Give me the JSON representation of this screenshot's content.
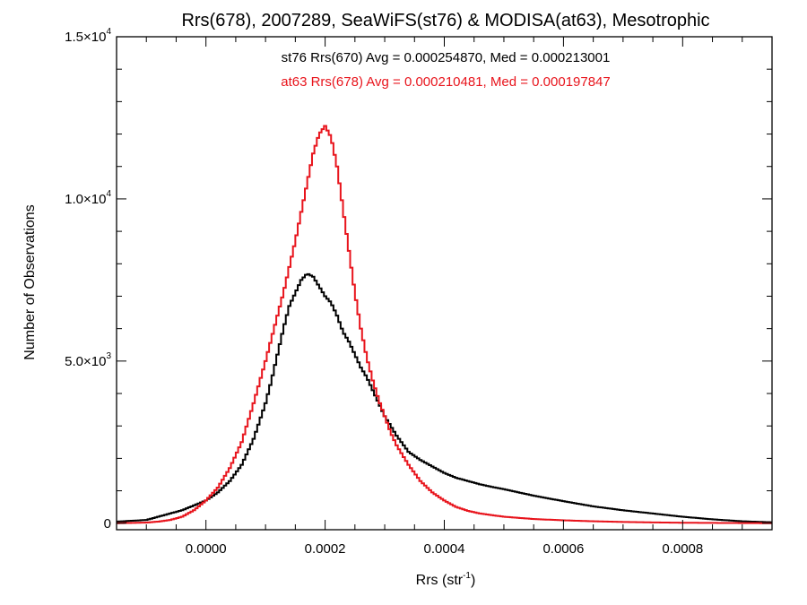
{
  "chart_data": {
    "type": "line",
    "title": "Rrs(678), 2007289, SeaWiFS(st76) & MODISA(at63), Mesotrophic",
    "xlabel_base": "Rrs (str",
    "xlabel_sup": "-1",
    "xlabel_end": ")",
    "ylabel": "Number of Observations",
    "xlim": [
      -0.00015,
      0.00095
    ],
    "ylim": [
      -200,
      15000
    ],
    "x_ticks": [
      {
        "value": 0.0,
        "label": "0.0000"
      },
      {
        "value": 0.0002,
        "label": "0.0002"
      },
      {
        "value": 0.0004,
        "label": "0.0004"
      },
      {
        "value": 0.0006,
        "label": "0.0006"
      },
      {
        "value": 0.0008,
        "label": "0.0008"
      }
    ],
    "y_ticks": [
      {
        "value": 0,
        "base": "0",
        "exp": ""
      },
      {
        "value": 5000,
        "base": "5.0×10",
        "exp": "3"
      },
      {
        "value": 10000,
        "base": "1.0×10",
        "exp": "4"
      },
      {
        "value": 15000,
        "base": "1.5×10",
        "exp": "4"
      }
    ],
    "series": [
      {
        "name": "st76",
        "legend": "st76 Rrs(670) Avg = 0.000254870, Med = 0.000213001",
        "color": "#000000",
        "x": [
          -0.00015,
          -0.0001,
          -8e-05,
          -6e-05,
          -4e-05,
          -2e-05,
          0.0,
          2e-05,
          4e-05,
          6e-05,
          8e-05,
          0.0001,
          0.00011,
          0.00012,
          0.00013,
          0.00014,
          0.00015,
          0.00016,
          0.00017,
          0.00018,
          0.00019,
          0.0002,
          0.00021,
          0.00022,
          0.00023,
          0.00024,
          0.00025,
          0.00026,
          0.00027,
          0.00028,
          0.0003,
          0.00032,
          0.00034,
          0.00036,
          0.00038,
          0.0004,
          0.00042,
          0.00044,
          0.00046,
          0.00048,
          0.0005,
          0.00055,
          0.0006,
          0.00065,
          0.0007,
          0.00075,
          0.0008,
          0.00085,
          0.0009,
          0.00095
        ],
        "values": [
          50,
          100,
          200,
          300,
          400,
          550,
          700,
          950,
          1300,
          1800,
          2600,
          3700,
          4400,
          5200,
          6000,
          6700,
          7100,
          7500,
          7700,
          7600,
          7300,
          7000,
          6800,
          6400,
          5900,
          5600,
          5200,
          4800,
          4500,
          4100,
          3300,
          2700,
          2200,
          1950,
          1750,
          1550,
          1400,
          1300,
          1200,
          1120,
          1050,
          850,
          680,
          520,
          400,
          300,
          200,
          120,
          60,
          30
        ]
      },
      {
        "name": "at63",
        "legend": "at63 Rrs(678) Avg = 0.000210481, Med = 0.000197847",
        "color": "#e8141c",
        "x": [
          -0.00015,
          -0.0001,
          -8e-05,
          -6e-05,
          -4e-05,
          -2e-05,
          0.0,
          2e-05,
          4e-05,
          6e-05,
          8e-05,
          0.0001,
          0.00011,
          0.00012,
          0.00013,
          0.00014,
          0.00015,
          0.00016,
          0.00017,
          0.00018,
          0.00019,
          0.0002,
          0.00021,
          0.00022,
          0.00023,
          0.00024,
          0.00025,
          0.00026,
          0.00027,
          0.00028,
          0.00029,
          0.0003,
          0.00031,
          0.00032,
          0.00034,
          0.00036,
          0.00038,
          0.0004,
          0.00042,
          0.00044,
          0.00046,
          0.00048,
          0.0005,
          0.00055,
          0.0006,
          0.00065,
          0.0007,
          0.00075,
          0.0008,
          0.00085,
          0.0009,
          0.00095
        ],
        "values": [
          0,
          20,
          50,
          100,
          200,
          400,
          700,
          1100,
          1700,
          2500,
          3700,
          5000,
          5700,
          6400,
          7100,
          7900,
          8700,
          9600,
          10500,
          11400,
          12000,
          12250,
          11900,
          11000,
          9700,
          8400,
          7100,
          6000,
          5100,
          4400,
          3800,
          3300,
          2800,
          2400,
          1800,
          1300,
          950,
          700,
          500,
          380,
          300,
          250,
          200,
          130,
          90,
          60,
          40,
          25,
          15,
          10,
          5,
          0
        ]
      }
    ],
    "grid": false,
    "legend_placement": "top-center"
  }
}
